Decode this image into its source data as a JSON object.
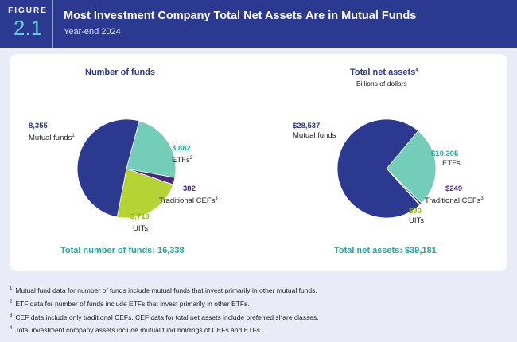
{
  "header": {
    "figure_label": "FIGURE",
    "figure_number": "2.1",
    "title": "Most Investment Company Total Net Assets Are in Mutual Funds",
    "subtitle": "Year-end 2024"
  },
  "colors": {
    "mutual_funds": "#2b3990",
    "etfs": "#74cdb9",
    "traditional_cefs": "#4b2a7b",
    "uits": "#b5d334",
    "teal_text": "#1ea9a2",
    "lime_text": "#8fb31c"
  },
  "chart_data": [
    {
      "type": "pie",
      "title": "Number of funds",
      "categories": [
        "Mutual funds",
        "ETFs",
        "Traditional CEFs",
        "UITs"
      ],
      "values": [
        8355,
        3882,
        382,
        3719
      ],
      "value_labels": [
        "8,355",
        "3,882",
        "382",
        "3,719"
      ],
      "label_sups": [
        "1",
        "2",
        "3",
        ""
      ],
      "total_label": "Total number of funds: 16,338"
    },
    {
      "type": "pie",
      "title": "Total net assets",
      "title_sup": "4",
      "subtitle": "Billions of dollars",
      "categories": [
        "Mutual funds",
        "ETFs",
        "Traditional CEFs",
        "UITs"
      ],
      "values": [
        28537,
        10305,
        249,
        90
      ],
      "value_labels": [
        "$28,537",
        "$10,305",
        "$249",
        "$90"
      ],
      "label_sups": [
        "",
        "",
        "3",
        ""
      ],
      "total_label": "Total net assets: $39,181"
    }
  ],
  "footnotes": [
    {
      "num": "1",
      "text": "Mutual fund data for number of funds include mutual funds that invest primarily in other mutual funds."
    },
    {
      "num": "2",
      "text": "ETF data for number of funds include ETFs that invest primarily in other ETFs."
    },
    {
      "num": "3",
      "text": "CEF data include only traditional CEFs. CEF data for total net assets include preferred share classes."
    },
    {
      "num": "4",
      "text": "Total investment company assets include mutual fund holdings of CEFs and ETFs."
    }
  ]
}
